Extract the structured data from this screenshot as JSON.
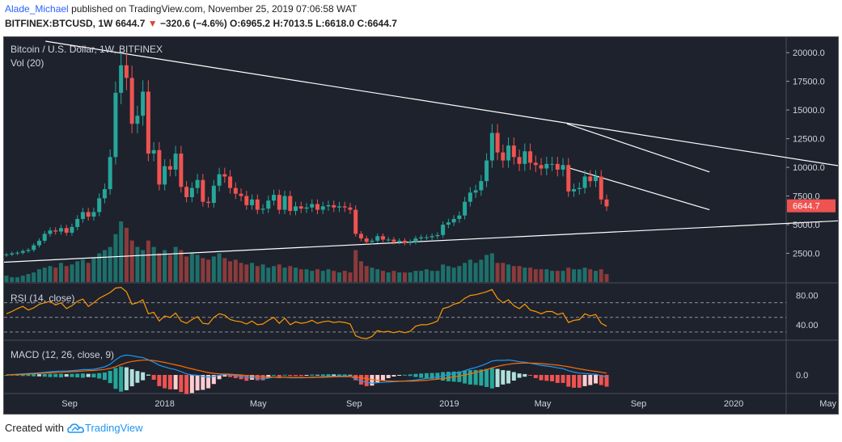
{
  "header": {
    "author": "Alade_Michael",
    "published": "published on TradingView.com, November 25, 2019 07:06:58 WAT",
    "symbol": "BITFINEX:BTCUSD, 1W",
    "last": "6644.7",
    "change_arrow": "▼",
    "change": "−320.6 (−4.6%)",
    "ohlc": {
      "o_label": "O:",
      "o": "6965.2",
      "h_label": "H:",
      "h": "7013.5",
      "l_label": "L:",
      "l": "6618.0",
      "c_label": "C:",
      "c": "6644.7"
    }
  },
  "pane_labels": {
    "main": "Bitcoin / U.S. Dollar, 1W, BITFINEX",
    "volume": "Vol (20)",
    "rsi": "RSI (14, close)",
    "macd": "MACD (12, 26, close, 9)"
  },
  "footer": {
    "created_with": "Created with",
    "brand": "TradingView"
  },
  "colors": {
    "up": "#26a69a",
    "down": "#ef5350",
    "background": "#1e222d",
    "rsi_line": "#ff9800",
    "macd_line": "#2196f3",
    "signal_line": "#ff6d00",
    "trendline": "#ffffff"
  },
  "chart_data": [
    {
      "type": "candlestick",
      "title": "Bitcoin / U.S. Dollar, 1W, BITFINEX",
      "y_ticks": [
        "20000.0",
        "17500.0",
        "15000.0",
        "12500.0",
        "10000.0",
        "7500.0",
        "5000.0",
        "2500.0"
      ],
      "ylim": [
        0,
        21000
      ],
      "x_ticks": [
        "Sep",
        "2018",
        "May",
        "Sep",
        "2019",
        "May",
        "Sep",
        "2020",
        "May"
      ],
      "last_price_label": "6644.7",
      "close_series": [
        2400,
        2500,
        2550,
        2700,
        2800,
        3200,
        3600,
        4200,
        4500,
        4400,
        4700,
        4300,
        4800,
        5500,
        6100,
        5700,
        6100,
        7300,
        8100,
        10900,
        16500,
        18900,
        17800,
        13800,
        14500,
        16600,
        11200,
        11500,
        8500,
        10100,
        9800,
        11200,
        8300,
        7400,
        8200,
        8900,
        7000,
        6900,
        8400,
        9400,
        9200,
        8200,
        7700,
        7500,
        6700,
        7200,
        6300,
        6400,
        7100,
        7600,
        6300,
        7500,
        6200,
        6600,
        6400,
        6500,
        6800,
        6300,
        6600,
        6700,
        6500,
        6600,
        6500,
        6300,
        4200,
        3800,
        3500,
        3600,
        4000,
        3700,
        3700,
        3500,
        3600,
        3400,
        3500,
        3800,
        3900,
        3900,
        4000,
        4100,
        5000,
        5200,
        5500,
        5800,
        7000,
        7800,
        8000,
        8800,
        10600,
        13000,
        11300,
        10600,
        11900,
        10900,
        10300,
        11400,
        10400,
        10200,
        9900,
        10300,
        10300,
        9800,
        10200,
        7900,
        8100,
        8200,
        9200,
        8800,
        9200,
        7200,
        6600
      ],
      "trendlines": [
        {
          "from": [
            "2017-08",
            21000
          ],
          "to": [
            "2020-08",
            9300
          ]
        },
        {
          "from": [
            "2017-06",
            1700
          ],
          "to": [
            "2020-08",
            5600
          ]
        },
        {
          "from": [
            "2019-06",
            13800
          ],
          "to": [
            "2019-12",
            9600
          ]
        },
        {
          "from": [
            "2019-06",
            10000
          ],
          "to": [
            "2019-12",
            6300
          ]
        }
      ]
    },
    {
      "type": "bar",
      "title": "Vol (20)",
      "values": [
        4,
        3,
        3,
        4,
        5,
        6,
        8,
        9,
        10,
        9,
        12,
        10,
        11,
        13,
        14,
        12,
        15,
        18,
        20,
        22,
        30,
        38,
        34,
        26,
        22,
        20,
        26,
        22,
        18,
        20,
        17,
        22,
        20,
        16,
        18,
        17,
        15,
        14,
        16,
        18,
        15,
        13,
        14,
        12,
        11,
        12,
        10,
        11,
        9,
        10,
        11,
        9,
        10,
        9,
        8,
        8,
        7,
        8,
        7,
        8,
        7,
        6,
        7,
        6,
        20,
        13,
        10,
        9,
        8,
        7,
        6,
        7,
        6,
        6,
        6,
        7,
        7,
        8,
        7,
        7,
        11,
        10,
        9,
        10,
        12,
        14,
        12,
        14,
        17,
        18,
        12,
        12,
        11,
        10,
        10,
        9,
        9,
        8,
        8,
        8,
        7,
        7,
        7,
        9,
        8,
        8,
        9,
        8,
        7,
        8,
        5
      ]
    },
    {
      "type": "line",
      "title": "RSI (14, close)",
      "y_ticks": [
        "80.00",
        "40.00"
      ],
      "ylim": [
        20,
        95
      ],
      "values": [
        55,
        58,
        62,
        65,
        60,
        63,
        68,
        70,
        72,
        67,
        70,
        62,
        66,
        72,
        75,
        65,
        70,
        76,
        80,
        84,
        90,
        91,
        85,
        68,
        70,
        74,
        55,
        57,
        45,
        52,
        50,
        56,
        45,
        42,
        47,
        51,
        42,
        41,
        50,
        55,
        53,
        47,
        45,
        44,
        41,
        45,
        40,
        41,
        46,
        50,
        42,
        49,
        40,
        44,
        42,
        43,
        46,
        42,
        44,
        45,
        43,
        44,
        43,
        41,
        25,
        22,
        21,
        24,
        32,
        30,
        31,
        29,
        31,
        29,
        31,
        38,
        40,
        40,
        42,
        45,
        62,
        64,
        68,
        70,
        76,
        80,
        81,
        83,
        85,
        88,
        76,
        70,
        74,
        66,
        62,
        68,
        60,
        58,
        55,
        58,
        58,
        54,
        56,
        43,
        46,
        47,
        55,
        52,
        54,
        42,
        38
      ]
    },
    {
      "type": "line",
      "title": "MACD (12, 26, close, 9)",
      "y_ticks": [
        "0.0"
      ],
      "series": [
        {
          "values": [
            0.0,
            0.02,
            0.04,
            0.06,
            0.08,
            0.1,
            0.12,
            0.15,
            0.18,
            0.2,
            0.22,
            0.22,
            0.24,
            0.27,
            0.3,
            0.3,
            0.32,
            0.38,
            0.45,
            0.6,
            0.85,
            1.05,
            1.12,
            1.08,
            1.02,
            0.98,
            0.85,
            0.72,
            0.55,
            0.45,
            0.36,
            0.3,
            0.18,
            0.06,
            0.0,
            -0.02,
            -0.08,
            -0.12,
            -0.08,
            -0.02,
            0.02,
            0.0,
            -0.04,
            -0.08,
            -0.14,
            -0.14,
            -0.18,
            -0.2,
            -0.18,
            -0.12,
            -0.16,
            -0.12,
            -0.16,
            -0.16,
            -0.16,
            -0.15,
            -0.12,
            -0.12,
            -0.1,
            -0.08,
            -0.08,
            -0.07,
            -0.07,
            -0.08,
            -0.22,
            -0.34,
            -0.42,
            -0.46,
            -0.44,
            -0.42,
            -0.4,
            -0.38,
            -0.36,
            -0.34,
            -0.32,
            -0.28,
            -0.24,
            -0.2,
            -0.16,
            -0.12,
            -0.04,
            0.02,
            0.08,
            0.14,
            0.24,
            0.34,
            0.42,
            0.52,
            0.64,
            0.78,
            0.82,
            0.82,
            0.84,
            0.8,
            0.74,
            0.72,
            0.66,
            0.6,
            0.54,
            0.5,
            0.46,
            0.4,
            0.36,
            0.24,
            0.16,
            0.1,
            0.08,
            0.05,
            0.04,
            -0.04,
            -0.12
          ]
        },
        {
          "values": [
            0.0,
            0.01,
            0.02,
            0.03,
            0.05,
            0.06,
            0.08,
            0.1,
            0.12,
            0.14,
            0.15,
            0.17,
            0.18,
            0.2,
            0.22,
            0.24,
            0.25,
            0.28,
            0.31,
            0.37,
            0.46,
            0.58,
            0.69,
            0.76,
            0.8,
            0.83,
            0.83,
            0.81,
            0.76,
            0.7,
            0.63,
            0.57,
            0.5,
            0.42,
            0.34,
            0.27,
            0.2,
            0.13,
            0.09,
            0.06,
            0.05,
            0.04,
            0.02,
            0.0,
            -0.03,
            -0.05,
            -0.08,
            -0.1,
            -0.12,
            -0.12,
            -0.13,
            -0.13,
            -0.14,
            -0.14,
            -0.14,
            -0.14,
            -0.14,
            -0.13,
            -0.13,
            -0.12,
            -0.11,
            -0.1,
            -0.1,
            -0.09,
            -0.12,
            -0.16,
            -0.21,
            -0.26,
            -0.3,
            -0.32,
            -0.34,
            -0.35,
            -0.35,
            -0.35,
            -0.35,
            -0.34,
            -0.32,
            -0.3,
            -0.27,
            -0.24,
            -0.2,
            -0.16,
            -0.11,
            -0.06,
            0.0,
            0.07,
            0.14,
            0.22,
            0.3,
            0.4,
            0.48,
            0.55,
            0.6,
            0.64,
            0.66,
            0.67,
            0.67,
            0.66,
            0.64,
            0.61,
            0.58,
            0.55,
            0.51,
            0.46,
            0.4,
            0.34,
            0.29,
            0.24,
            0.2,
            0.15,
            0.1
          ]
        }
      ]
    }
  ]
}
